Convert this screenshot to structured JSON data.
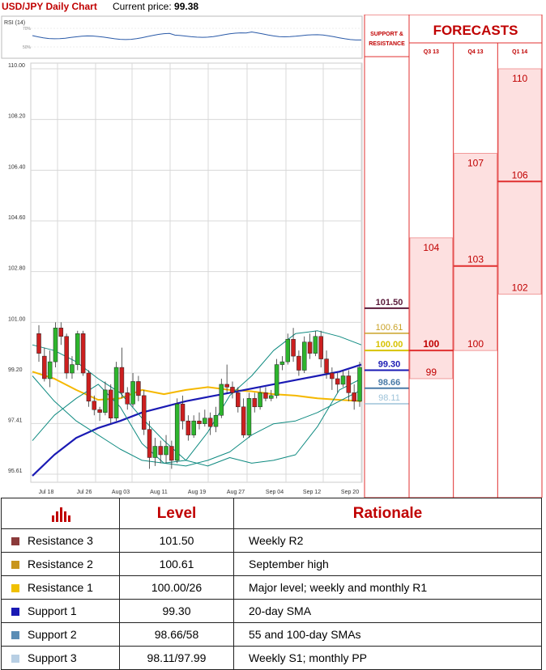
{
  "header": {
    "title": "USD/JPY Daily Chart",
    "price_label": "Current price:",
    "price_value": "99.38"
  },
  "rsi": {
    "label": "RSI (14)",
    "ticks": [
      "70%",
      "50%"
    ]
  },
  "chart_data": [
    {
      "type": "candlestick",
      "title": "USD/JPY Daily Chart",
      "y_ticks": [
        "110.00",
        "108.20",
        "106.40",
        "104.60",
        "102.80",
        "101.00",
        "99.20",
        "97.41",
        "95.61"
      ],
      "x_ticks": [
        "Jul 18",
        "Jul 26",
        "Aug 03",
        "Aug 11",
        "Aug 19",
        "Aug 27",
        "Sep 04",
        "Sep 12",
        "Sep 20"
      ],
      "ylim": [
        95.61,
        110.0
      ],
      "grid": true,
      "candles": [
        [
          100.6,
          99.9,
          100.9,
          99.6
        ],
        [
          99.8,
          99.0,
          100.1,
          98.9
        ],
        [
          99.0,
          99.6,
          100.0,
          98.7
        ],
        [
          99.6,
          100.8,
          101.0,
          99.4
        ],
        [
          100.8,
          100.5,
          101.0,
          100.2
        ],
        [
          100.5,
          99.2,
          100.6,
          99.0
        ],
        [
          99.2,
          99.5,
          99.8,
          99.0
        ],
        [
          99.5,
          100.6,
          100.7,
          99.3
        ],
        [
          100.6,
          99.2,
          100.7,
          99.1
        ],
        [
          99.2,
          98.2,
          99.3,
          98.0
        ],
        [
          98.2,
          97.9,
          98.4,
          97.7
        ],
        [
          97.9,
          97.8,
          98.0,
          97.5
        ],
        [
          97.8,
          98.6,
          98.9,
          97.7
        ],
        [
          98.6,
          97.6,
          98.8,
          97.4
        ],
        [
          97.6,
          99.4,
          99.6,
          97.5
        ],
        [
          99.4,
          98.5,
          100.1,
          98.3
        ],
        [
          98.5,
          98.1,
          98.7,
          97.9
        ],
        [
          98.1,
          98.9,
          99.2,
          98.0
        ],
        [
          98.9,
          98.4,
          99.1,
          98.2
        ],
        [
          98.4,
          97.2,
          98.6,
          97.0
        ],
        [
          97.2,
          96.2,
          97.5,
          95.8
        ],
        [
          96.2,
          96.6,
          96.9,
          95.9
        ],
        [
          96.6,
          96.3,
          96.8,
          96.0
        ],
        [
          96.3,
          96.6,
          97.0,
          96.0
        ],
        [
          96.6,
          96.1,
          96.8,
          95.8
        ],
        [
          96.1,
          98.1,
          98.3,
          96.0
        ],
        [
          98.1,
          97.5,
          98.4,
          97.2
        ],
        [
          97.5,
          97.0,
          97.7,
          96.8
        ],
        [
          97.0,
          97.5,
          97.7,
          96.9
        ],
        [
          97.5,
          97.4,
          97.8,
          97.2
        ],
        [
          97.4,
          97.6,
          97.9,
          97.3
        ],
        [
          97.6,
          97.3,
          97.8,
          97.0
        ],
        [
          97.3,
          97.7,
          98.0,
          97.1
        ],
        [
          97.7,
          98.8,
          99.0,
          97.6
        ],
        [
          98.8,
          98.7,
          99.5,
          98.5
        ],
        [
          98.7,
          98.5,
          98.9,
          98.3
        ],
        [
          98.5,
          98.0,
          98.7,
          97.8
        ],
        [
          98.0,
          97.0,
          98.3,
          96.9
        ],
        [
          97.0,
          98.3,
          98.5,
          96.9
        ],
        [
          98.3,
          98.0,
          98.5,
          97.8
        ],
        [
          98.0,
          98.5,
          98.7,
          97.9
        ],
        [
          98.5,
          98.3,
          98.7,
          98.2
        ],
        [
          98.3,
          98.4,
          98.6,
          98.2
        ],
        [
          98.4,
          99.5,
          99.7,
          98.3
        ],
        [
          99.5,
          99.6,
          99.8,
          99.3
        ],
        [
          99.6,
          100.4,
          100.6,
          99.5
        ],
        [
          100.4,
          99.8,
          100.8,
          99.6
        ],
        [
          99.8,
          99.3,
          100.0,
          99.1
        ],
        [
          99.3,
          100.3,
          100.5,
          99.2
        ],
        [
          100.3,
          99.9,
          100.6,
          99.7
        ],
        [
          99.9,
          100.5,
          100.7,
          99.8
        ],
        [
          100.5,
          99.7,
          100.7,
          99.4
        ],
        [
          99.7,
          99.2,
          100.0,
          99.0
        ],
        [
          99.2,
          99.0,
          99.4,
          98.6
        ],
        [
          99.0,
          98.8,
          99.2,
          98.5
        ],
        [
          98.8,
          99.1,
          99.3,
          98.7
        ],
        [
          99.1,
          98.5,
          99.3,
          98.2
        ],
        [
          98.5,
          98.2,
          98.8,
          97.9
        ],
        [
          98.2,
          99.4,
          99.6,
          98.0
        ]
      ],
      "series": [
        {
          "values": [
            99.25,
            99.0,
            98.6,
            98.25,
            98.3,
            98.6,
            98.45,
            98.6,
            98.7,
            98.6,
            98.55,
            98.45,
            98.4,
            98.3,
            98.25,
            98.2
          ]
        },
        {
          "values": [
            95.55,
            96.3,
            96.9,
            97.25,
            97.5,
            97.8,
            98.0,
            98.2,
            98.35,
            98.5,
            98.65,
            98.8,
            98.95,
            99.1,
            99.25,
            99.5
          ]
        },
        {
          "values": [
            100.2,
            100.0,
            99.6,
            99.0,
            98.5,
            97.6,
            96.8,
            96.1,
            95.9,
            96.2,
            96.0,
            96.1,
            96.3,
            97.3,
            98.6,
            99.0
          ]
        },
        {
          "values": [
            96.8,
            97.7,
            98.3,
            98.8,
            98.0,
            96.7,
            96.0,
            96.1,
            97.1,
            98.4,
            99.1,
            100.0,
            100.6,
            100.7,
            100.5,
            100.2
          ]
        },
        {
          "values": [
            99.1,
            98.2,
            97.5,
            97.0,
            96.5,
            96.1,
            96.0,
            95.9,
            96.1,
            96.4,
            97.0,
            97.4,
            97.5,
            97.8,
            98.2,
            98.6
          ]
        }
      ]
    }
  ],
  "sr_panel": {
    "header": "SUPPORT & RESISTANCE",
    "levels": [
      {
        "label": "101.50",
        "value": 101.5,
        "color": "#5a1a3a",
        "bold": true
      },
      {
        "label": "100.61",
        "value": 100.61,
        "color": "#c9a227",
        "bold": false
      },
      {
        "label": "100.00",
        "value": 100.0,
        "color": "#d7c200",
        "bold": true
      },
      {
        "label": "99.30",
        "value": 99.3,
        "color": "#1a1ab4",
        "bold": true
      },
      {
        "label": "98.66",
        "value": 98.66,
        "color": "#4a7ba8",
        "bold": true
      },
      {
        "label": "98.11",
        "value": 98.11,
        "color": "#9ec3d9",
        "bold": false
      }
    ]
  },
  "forecasts": {
    "header": "FORECASTS",
    "quarters": [
      {
        "label": "Q3 13",
        "high": 104,
        "mid": 100,
        "low": 99
      },
      {
        "label": "Q4 13",
        "high": 107,
        "mid": 103,
        "low": 100
      },
      {
        "label": "Q1 14",
        "high": 110,
        "mid": 106,
        "low": 102
      }
    ]
  },
  "table": {
    "header": {
      "level": "Level",
      "rationale": "Rationale"
    },
    "rows": [
      {
        "name": "Resistance 3",
        "level": "101.50",
        "rationale": "Weekly R2",
        "color": "#8b3a3a"
      },
      {
        "name": "Resistance 2",
        "level": "100.61",
        "rationale": "September high",
        "color": "#c8961e"
      },
      {
        "name": "Resistance 1",
        "level": "100.00/26",
        "rationale": "Major level; weekly and monthly R1",
        "color": "#f0c000"
      },
      {
        "name": "Support 1",
        "level": "99.30",
        "rationale": "20-day SMA",
        "color": "#1a1ab4"
      },
      {
        "name": "Support 2",
        "level": "98.66/58",
        "rationale": "55 and 100-day SMAs",
        "color": "#5b8db5"
      },
      {
        "name": "Support 3",
        "level": "98.11/97.99",
        "rationale": "Weekly S1; monthly PP",
        "color": "#b8cfe4"
      }
    ]
  },
  "colors": {
    "up": "#2db52d",
    "down": "#cc1f1f",
    "sma20": "#f5b800",
    "sma55": "#1a1ab4",
    "band": "#0e8a80",
    "forecast_fill": "#fde0e0",
    "forecast_line": "#e03030",
    "forecast_text": "#c00000"
  }
}
